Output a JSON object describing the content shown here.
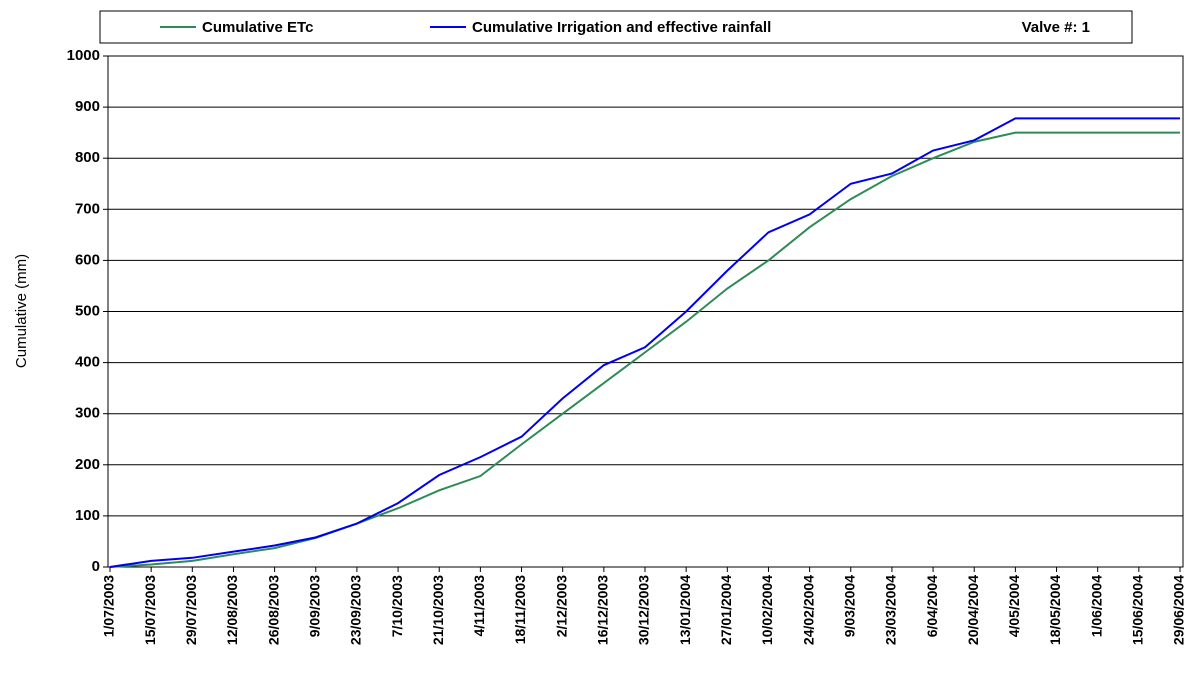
{
  "chart_data": {
    "type": "line",
    "ylabel": "Cumulative (mm)",
    "annotation": "Valve #: 1",
    "categories": [
      "1/07/2003",
      "15/07/2003",
      "29/07/2003",
      "12/08/2003",
      "26/08/2003",
      "9/09/2003",
      "23/09/2003",
      "7/10/2003",
      "21/10/2003",
      "4/11/2003",
      "18/11/2003",
      "2/12/2003",
      "16/12/2003",
      "30/12/2003",
      "13/01/2004",
      "27/01/2004",
      "10/02/2004",
      "24/02/2004",
      "9/03/2004",
      "23/03/2004",
      "6/04/2004",
      "20/04/2004",
      "4/05/2004",
      "18/05/2004",
      "1/06/2004",
      "15/06/2004",
      "29/06/2004"
    ],
    "series": [
      {
        "name": "Cumulative ETc",
        "color": "#2e8b57",
        "values": [
          0,
          5,
          12,
          25,
          37,
          57,
          85,
          115,
          150,
          178,
          240,
          300,
          360,
          420,
          480,
          545,
          600,
          665,
          720,
          765,
          800,
          832,
          850,
          850,
          850,
          850,
          850
        ]
      },
      {
        "name": "Cumulative Irrigation and effective rainfall",
        "color": "#0000ee",
        "values": [
          0,
          12,
          18,
          30,
          42,
          58,
          85,
          125,
          180,
          215,
          255,
          330,
          395,
          430,
          500,
          580,
          655,
          690,
          750,
          770,
          815,
          835,
          878,
          878,
          878,
          878,
          878
        ]
      }
    ],
    "ylim": [
      0,
      1000
    ],
    "yticks": [
      0,
      100,
      200,
      300,
      400,
      500,
      600,
      700,
      800,
      900,
      1000
    ],
    "grid": true
  }
}
